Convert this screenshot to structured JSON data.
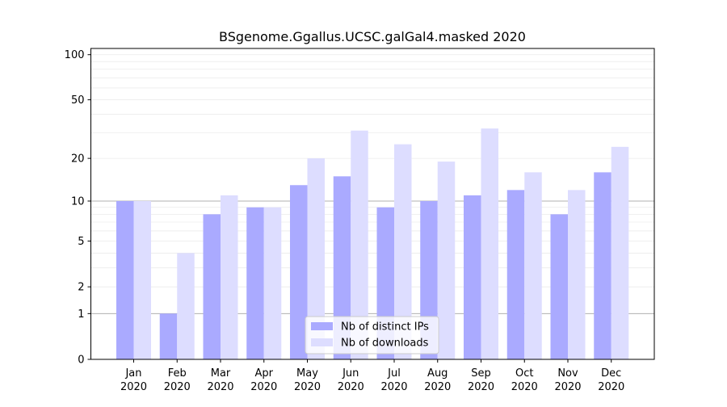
{
  "chart_data": {
    "type": "bar",
    "title": "BSgenome.Ggallus.UCSC.galGal4.masked 2020",
    "xlabel": "",
    "ylabel": "",
    "categories": [
      [
        "Jan",
        "2020"
      ],
      [
        "Feb",
        "2020"
      ],
      [
        "Mar",
        "2020"
      ],
      [
        "Apr",
        "2020"
      ],
      [
        "May",
        "2020"
      ],
      [
        "Jun",
        "2020"
      ],
      [
        "Jul",
        "2020"
      ],
      [
        "Aug",
        "2020"
      ],
      [
        "Sep",
        "2020"
      ],
      [
        "Oct",
        "2020"
      ],
      [
        "Nov",
        "2020"
      ],
      [
        "Dec",
        "2020"
      ]
    ],
    "series": [
      {
        "name": "Nb of distinct IPs",
        "color": "#aaaaff",
        "values": [
          10,
          1,
          8,
          9,
          13,
          15,
          9,
          10,
          11,
          12,
          8,
          16
        ]
      },
      {
        "name": "Nb of downloads",
        "color": "#ddddff",
        "values": [
          10,
          4,
          11,
          9,
          20,
          31,
          25,
          19,
          32,
          16,
          12,
          24
        ]
      }
    ],
    "yscale": "log(1+y)",
    "ylim": [
      0,
      110
    ],
    "yticks": [
      0,
      1,
      2,
      5,
      10,
      20,
      50,
      100
    ],
    "grid": true,
    "major_gridlines": [
      1,
      10
    ],
    "legend_position": "bottom-center"
  }
}
